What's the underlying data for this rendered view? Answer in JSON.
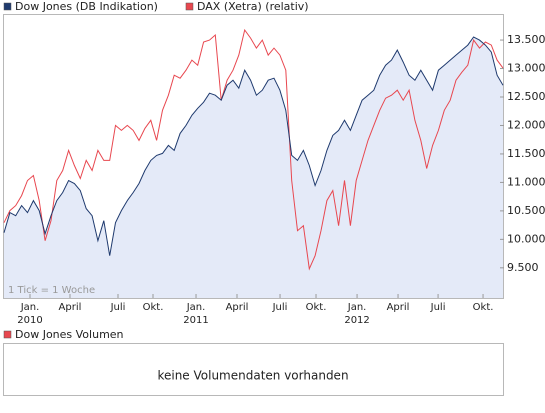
{
  "chart_data": {
    "type": "line",
    "legend": "top",
    "grid": false,
    "annotation": "1 Tick = 1 Woche",
    "ylim": [
      8970,
      13940
    ],
    "yticks": [
      {
        "value": 9500,
        "label": "9.500"
      },
      {
        "value": 10000,
        "label": "10.000"
      },
      {
        "value": 10500,
        "label": "10.500"
      },
      {
        "value": 11000,
        "label": "11.000"
      },
      {
        "value": 11500,
        "label": "11.500"
      },
      {
        "value": 12000,
        "label": "12.000"
      },
      {
        "value": 12500,
        "label": "12.500"
      },
      {
        "value": 13000,
        "label": "13.000"
      },
      {
        "value": 13500,
        "label": "13.500"
      }
    ],
    "xlim": [
      0,
      85
    ],
    "xticks": [
      {
        "value": 4.43,
        "label": "Jan."
      },
      {
        "value": 11.24,
        "label": "April"
      },
      {
        "value": 19.42,
        "label": "Juli"
      },
      {
        "value": 25.38,
        "label": "Okt."
      },
      {
        "value": 32.71,
        "label": "Jan."
      },
      {
        "value": 39.69,
        "label": "April"
      },
      {
        "value": 47.02,
        "label": "Juli"
      },
      {
        "value": 53.15,
        "label": "Okt."
      },
      {
        "value": 60.14,
        "label": "Jan."
      },
      {
        "value": 67.12,
        "label": "April"
      },
      {
        "value": 73.94,
        "label": "Juli"
      },
      {
        "value": 81.6,
        "label": "Okt."
      }
    ],
    "years": [
      {
        "value": 4.43,
        "label": "2010"
      },
      {
        "value": 32.71,
        "label": "2011"
      },
      {
        "value": 60.14,
        "label": "2012"
      }
    ],
    "series": [
      {
        "name": "Dow Jones (DB Indikation)",
        "color": "#1f3a6e",
        "fill": "#e4eaf8",
        "values": [
          10117,
          10469,
          10416,
          10593,
          10469,
          10681,
          10505,
          10099,
          10416,
          10681,
          10822,
          11033,
          10980,
          10857,
          10540,
          10416,
          9976,
          10328,
          9712,
          10293,
          10505,
          10681,
          10822,
          10980,
          11209,
          11386,
          11474,
          11509,
          11650,
          11562,
          11861,
          12002,
          12178,
          12302,
          12408,
          12566,
          12531,
          12443,
          12707,
          12795,
          12654,
          12971,
          12795,
          12531,
          12619,
          12795,
          12830,
          12619,
          12267,
          11474,
          11386,
          11562,
          11297,
          10945,
          11209,
          11562,
          11826,
          11914,
          12090,
          11914,
          12178,
          12443,
          12531,
          12619,
          12883,
          13059,
          13148,
          13324,
          13112,
          12883,
          12795,
          12971,
          12795,
          12619,
          12971,
          13059,
          13148,
          13236,
          13324,
          13412,
          13553,
          13500,
          13412,
          13289,
          12883,
          12707
        ]
      },
      {
        "name": "DAX (Xetra) (relativ)",
        "color": "#e8474f",
        "values": [
          10293,
          10505,
          10593,
          10769,
          11033,
          11121,
          10681,
          9976,
          10328,
          11033,
          11209,
          11562,
          11297,
          11068,
          11386,
          11209,
          11562,
          11386,
          11386,
          12002,
          11914,
          12002,
          11914,
          11738,
          11949,
          12090,
          11738,
          12267,
          12531,
          12883,
          12830,
          12971,
          13148,
          13059,
          13465,
          13500,
          13588,
          12443,
          12795,
          12971,
          13236,
          13676,
          13535,
          13359,
          13500,
          13236,
          13359,
          13236,
          12971,
          11033,
          10152,
          10240,
          9483,
          9712,
          10152,
          10681,
          10857,
          10240,
          11033,
          10240,
          11033,
          11386,
          11738,
          12002,
          12267,
          12478,
          12531,
          12619,
          12443,
          12619,
          12090,
          11738,
          11245,
          11650,
          11914,
          12267,
          12443,
          12795,
          12936,
          13059,
          13500,
          13359,
          13465,
          13412,
          13148,
          13007
        ]
      }
    ]
  },
  "volume_panel": {
    "legend": {
      "name": "Dow Jones Volumen",
      "color": "#e8474f"
    },
    "message": "keine Volumendaten vorhanden"
  }
}
